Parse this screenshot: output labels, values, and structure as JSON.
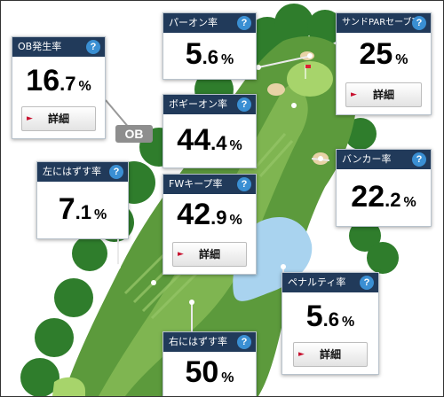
{
  "stats": {
    "ob": {
      "title": "OB発生率",
      "int": "16",
      "dec": ".7",
      "unit": "%",
      "detail": "詳細"
    },
    "green_reg": {
      "title": "パーオン率",
      "int": "5",
      "dec": ".6",
      "unit": "%"
    },
    "sand_save": {
      "title": "サンドPARセーブ率",
      "int": "25",
      "dec": "",
      "unit": "%",
      "detail": "詳細"
    },
    "bogey_on": {
      "title": "ボギーオン率",
      "int": "44",
      "dec": ".4",
      "unit": "%"
    },
    "miss_left": {
      "title": "左にはずす率",
      "int": "7",
      "dec": ".1",
      "unit": "%"
    },
    "bunker": {
      "title": "バンカー率",
      "int": "22",
      "dec": ".2",
      "unit": "%"
    },
    "fw_keep": {
      "title": "FWキープ率",
      "int": "42",
      "dec": ".9",
      "unit": "%",
      "detail": "詳細"
    },
    "penalty": {
      "title": "ペナルティ率",
      "int": "5",
      "dec": ".6",
      "unit": "%",
      "detail": "詳細"
    },
    "miss_right": {
      "title": "右にはずす率",
      "int": "50",
      "dec": "",
      "unit": "%"
    }
  },
  "help_glyph": "?",
  "detail_arrow": "►",
  "map": {
    "ob_label": "OB",
    "colors": {
      "rough": "#5c9a3c",
      "fairway": "#7fb551",
      "trees": "#2f7d2c",
      "water": "#a9d3ef",
      "bunker": "#e8d2a6",
      "green": "#a7d46b",
      "card_header": "#213a5a",
      "help": "#3a8fd3"
    }
  }
}
